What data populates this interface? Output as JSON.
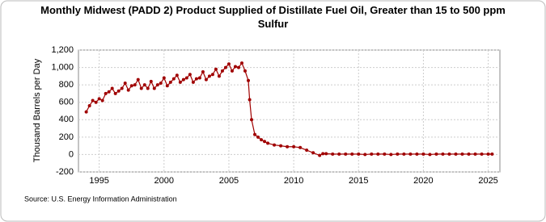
{
  "chart_data": {
    "type": "line",
    "title": "Monthly Midwest (PADD 2) Product Supplied of Distillate Fuel Oil, Greater than 15 to 500 ppm Sulfur",
    "y_label": "Thousand Barrels per Day",
    "source": "Source: U.S. Energy Information Administration",
    "x": [
      1994.0,
      1994.25,
      1994.5,
      1994.75,
      1995.0,
      1995.25,
      1995.5,
      1995.75,
      1996.0,
      1996.25,
      1996.5,
      1996.75,
      1997.0,
      1997.25,
      1997.5,
      1997.75,
      1998.0,
      1998.25,
      1998.5,
      1998.75,
      1999.0,
      1999.25,
      1999.5,
      1999.75,
      2000.0,
      2000.25,
      2000.5,
      2000.75,
      2001.0,
      2001.25,
      2001.5,
      2001.75,
      2002.0,
      2002.25,
      2002.5,
      2002.75,
      2003.0,
      2003.25,
      2003.5,
      2003.75,
      2004.0,
      2004.25,
      2004.5,
      2004.75,
      2005.0,
      2005.25,
      2005.5,
      2005.75,
      2006.0,
      2006.25,
      2006.5,
      2006.6,
      2006.75,
      2007.0,
      2007.25,
      2007.5,
      2007.75,
      2008.0,
      2008.5,
      2009.0,
      2009.5,
      2010.0,
      2010.5,
      2011.0,
      2011.5,
      2012.0,
      2012.25,
      2012.5,
      2013.0,
      2013.5,
      2014.0,
      2014.5,
      2015.0,
      2015.5,
      2016.0,
      2016.5,
      2017.0,
      2017.5,
      2018.0,
      2018.5,
      2019.0,
      2019.5,
      2020.0,
      2020.5,
      2021.0,
      2021.5,
      2022.0,
      2022.5,
      2023.0,
      2023.5,
      2024.0,
      2024.5,
      2025.0,
      2025.3
    ],
    "series": [
      {
        "name": "Product Supplied",
        "color": "#a00000",
        "values": [
          490,
          560,
          620,
          600,
          640,
          620,
          700,
          720,
          760,
          700,
          730,
          760,
          820,
          740,
          790,
          800,
          860,
          760,
          800,
          760,
          840,
          760,
          800,
          820,
          880,
          790,
          830,
          870,
          910,
          830,
          860,
          880,
          920,
          830,
          870,
          880,
          950,
          860,
          900,
          920,
          980,
          900,
          960,
          1000,
          1040,
          960,
          1010,
          1000,
          1050,
          960,
          850,
          630,
          400,
          230,
          200,
          170,
          150,
          130,
          110,
          100,
          90,
          90,
          80,
          50,
          20,
          -10,
          10,
          10,
          5,
          5,
          5,
          5,
          5,
          0,
          5,
          5,
          5,
          0,
          5,
          5,
          5,
          5,
          5,
          0,
          5,
          5,
          5,
          5,
          5,
          5,
          5,
          5,
          5,
          5
        ]
      }
    ],
    "xlim": [
      1993.4,
      2025.9
    ],
    "xticks": [
      1995,
      2000,
      2005,
      2010,
      2015,
      2020,
      2025
    ],
    "ylim": [
      -200,
      1200
    ],
    "yticks": [
      -200,
      0,
      200,
      400,
      600,
      800,
      {
        "value": 1000,
        "label": "1,000"
      },
      {
        "value": 1200,
        "label": "1,200"
      }
    ],
    "grid": true
  }
}
